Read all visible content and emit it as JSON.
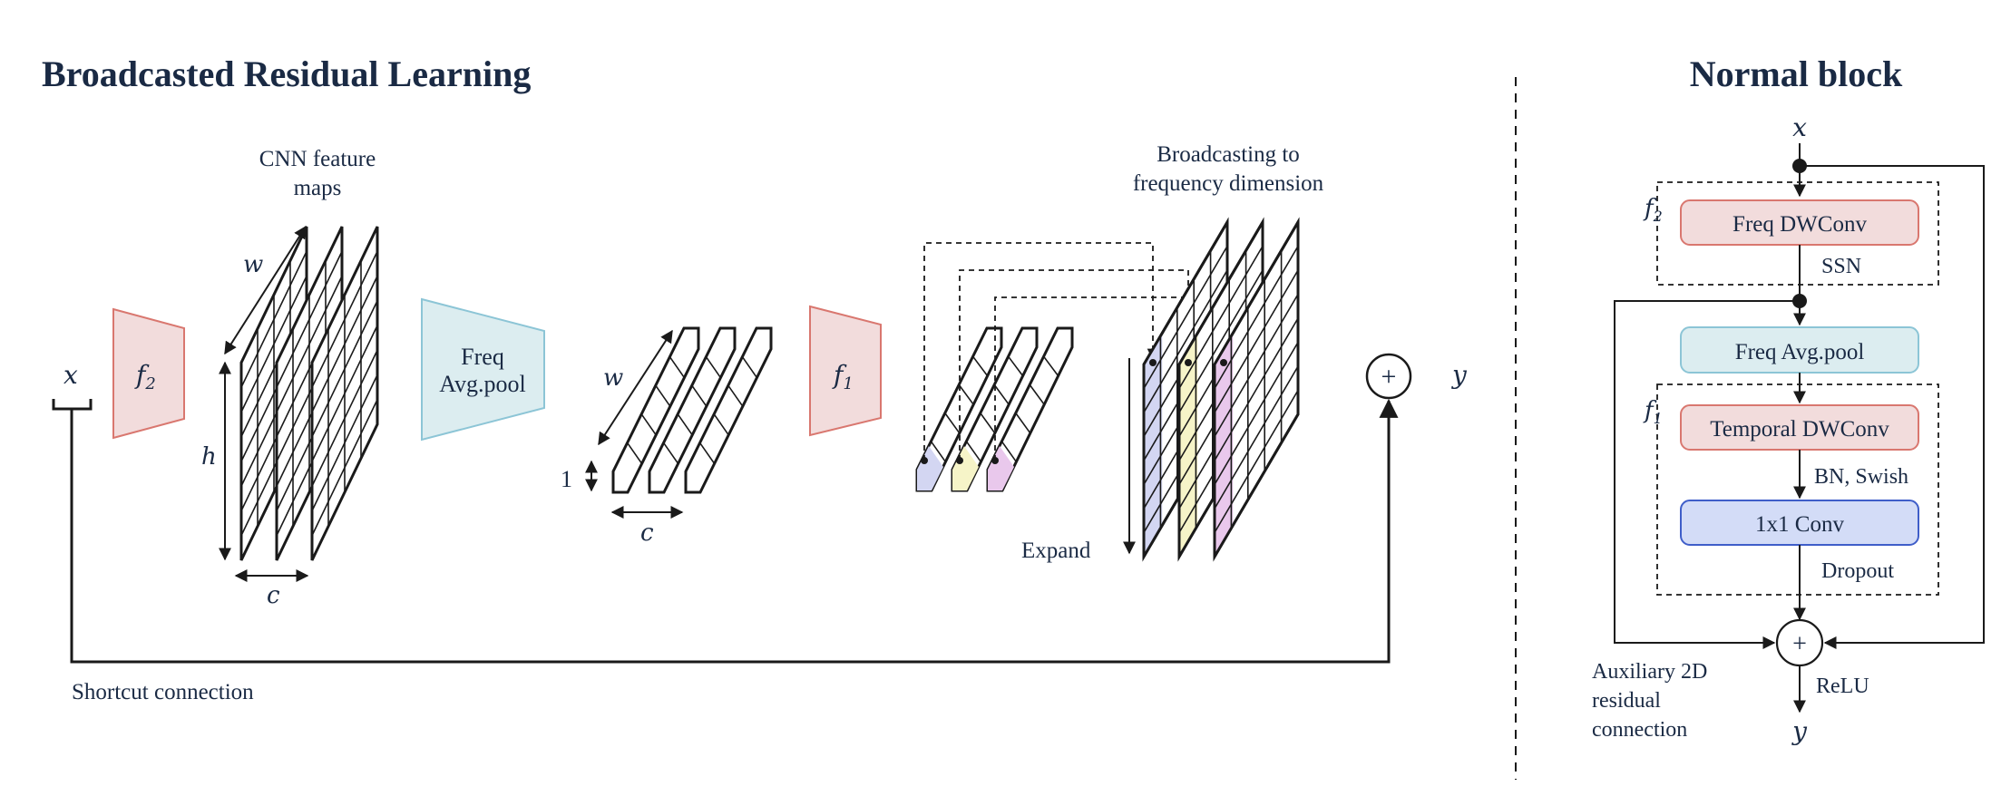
{
  "left_panel": {
    "title": "Broadcasted Residual Learning",
    "input_label": "x",
    "output_label": "y",
    "f2_label": "f",
    "f2_sub": "2",
    "f1_label": "f",
    "f1_sub": "1",
    "cnn_maps_line1": "CNN feature",
    "cnn_maps_line2": "maps",
    "dim_w": "w",
    "dim_h": "h",
    "dim_c": "c",
    "dim_one": "1",
    "pool_line1": "Freq",
    "pool_line2": "Avg.pool",
    "broadcast_line1": "Broadcasting to",
    "broadcast_line2": "frequency dimension",
    "expand_label": "Expand",
    "shortcut_label": "Shortcut connection",
    "plus_symbol": "+"
  },
  "right_panel": {
    "title": "Normal block",
    "input_label": "x",
    "output_label": "y",
    "f2_label": "f",
    "f2_sub": "2",
    "f1_label": "f",
    "f1_sub": "1",
    "blocks": [
      "Freq DWConv",
      "Freq Avg.pool",
      "Temporal DWConv",
      "1x1 Conv"
    ],
    "annotations": [
      "SSN",
      "BN, Swish",
      "Dropout",
      "ReLU"
    ],
    "aux_line1": "Auxiliary 2D",
    "aux_line2": "residual",
    "aux_line3": "connection",
    "plus_symbol": "+"
  },
  "colors": {
    "red_fill": "#f2dcdc",
    "red_stroke": "#d9776f",
    "teal_fill": "#dcedf0",
    "teal_stroke": "#8cc5d6",
    "blue_fill": "#d3dcf7",
    "blue_stroke": "#3f5ec9",
    "lavender": "#d3d6f2",
    "yellow": "#f6f4c8",
    "pink": "#e9c8ec"
  }
}
